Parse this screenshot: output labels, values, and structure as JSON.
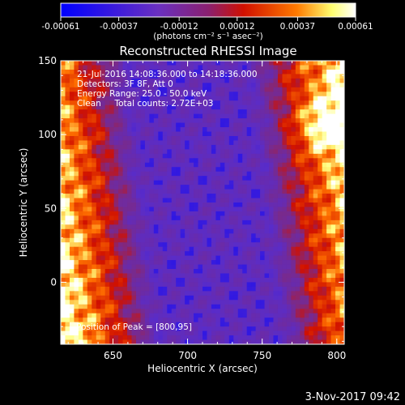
{
  "colorbar": {
    "ticks": [
      "-0.00061",
      "-0.00037",
      "-0.00012",
      "0.00012",
      "0.00037",
      "0.00061"
    ],
    "tick_values": [
      -0.00061,
      -0.00037,
      -0.00012,
      0.00012,
      0.00037,
      0.00061
    ],
    "units_label": "(photons cm⁻² s⁻¹ asec⁻²)",
    "colors": [
      "#0000ff",
      "#5a2cc8",
      "#7a2a8a",
      "#d01000",
      "#ff7000",
      "#ffff80",
      "#ffffff"
    ]
  },
  "chart_data": {
    "type": "heatmap",
    "title": "Reconstructed RHESSI Image",
    "xlabel": "Heliocentric X (arcsec)",
    "ylabel": "Heliocentric Y (arcsec)",
    "xlim": [
      615,
      805
    ],
    "ylim": [
      -42,
      150
    ],
    "x_ticks": [
      650,
      700,
      750,
      800
    ],
    "y_ticks": [
      0,
      50,
      100,
      150
    ],
    "x_tick_labels": [
      "650",
      "700",
      "750",
      "800"
    ],
    "y_tick_labels": [
      "0",
      "50",
      "100",
      "150"
    ],
    "value_range": [
      -0.00061,
      0.00061
    ],
    "annotations": [
      "21-Jul-2016 14:08:36.000 to 14:18:36.000",
      "Detectors: 3F 8F, Att 0",
      "Energy Range: 25.0 - 50.0 keV",
      "Clean     Total counts: 2.72E+03"
    ],
    "peak_label": "Position of Peak = [800,95]",
    "peak": [
      800,
      95
    ]
  },
  "footer": {
    "timestamp": "3-Nov-2017 09:42"
  }
}
